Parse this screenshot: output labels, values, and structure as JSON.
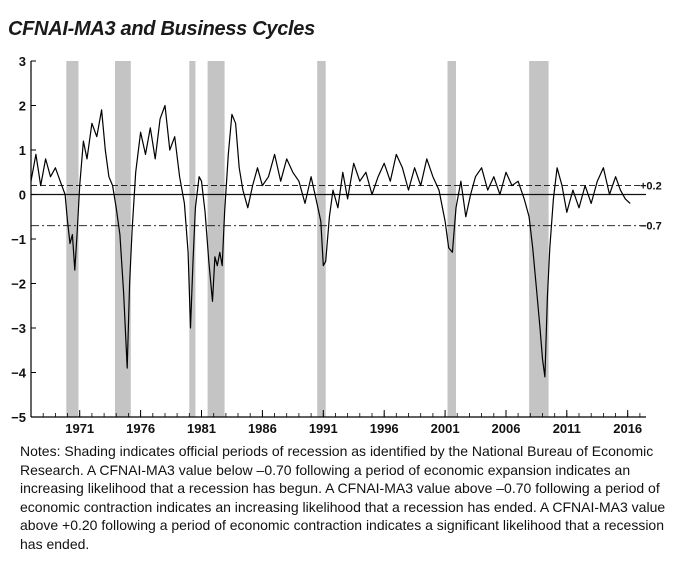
{
  "chart_data": {
    "type": "line",
    "title": "CFNAI-MA3 and Business Cycles",
    "xlabel": "",
    "ylabel": "",
    "xlim": [
      1967.0,
      2017.5
    ],
    "ylim": [
      -5,
      3
    ],
    "yticks": [
      3,
      2,
      1,
      0,
      -1,
      -2,
      -3,
      -4,
      -5
    ],
    "ytick_labels": [
      "3",
      "2",
      "1",
      "0",
      "−1",
      "−2",
      "−3",
      "−4",
      "−5"
    ],
    "xticks": [
      1971,
      1976,
      1981,
      1986,
      1991,
      1996,
      2001,
      2006,
      2011,
      2016
    ],
    "xtick_labels": [
      "1971",
      "1976",
      "1981",
      "1986",
      "1991",
      "1996",
      "2001",
      "2006",
      "2011",
      "2016"
    ],
    "reference_lines": [
      {
        "value": 0.2,
        "label": "+0.2",
        "style": "dashed"
      },
      {
        "value": -0.7,
        "label": "−0.7",
        "style": "dashdot"
      },
      {
        "value": 0,
        "label": "",
        "style": "solid"
      }
    ],
    "recessions": [
      [
        1969.9,
        1970.9
      ],
      [
        1973.9,
        1975.2
      ],
      [
        1980.0,
        1980.5
      ],
      [
        1981.5,
        1982.9
      ],
      [
        1990.5,
        1991.2
      ],
      [
        2001.2,
        2001.9
      ],
      [
        2007.9,
        2009.5
      ]
    ],
    "series": [
      {
        "name": "CFNAI-MA3",
        "x": [
          1967.0,
          1967.4,
          1967.8,
          1968.2,
          1968.6,
          1969.0,
          1969.4,
          1969.8,
          1970.0,
          1970.2,
          1970.4,
          1970.6,
          1970.8,
          1971.0,
          1971.3,
          1971.6,
          1972.0,
          1972.4,
          1972.8,
          1973.1,
          1973.4,
          1973.7,
          1974.0,
          1974.3,
          1974.6,
          1974.9,
          1975.1,
          1975.3,
          1975.6,
          1976.0,
          1976.4,
          1976.8,
          1977.2,
          1977.6,
          1978.0,
          1978.4,
          1978.8,
          1979.2,
          1979.6,
          1979.9,
          1980.1,
          1980.3,
          1980.5,
          1980.8,
          1981.0,
          1981.3,
          1981.6,
          1981.9,
          1982.1,
          1982.3,
          1982.5,
          1982.7,
          1982.9,
          1983.2,
          1983.5,
          1983.8,
          1984.1,
          1984.4,
          1984.8,
          1985.2,
          1985.6,
          1986.0,
          1986.5,
          1987.0,
          1987.5,
          1988.0,
          1988.5,
          1989.0,
          1989.5,
          1990.0,
          1990.4,
          1990.8,
          1991.0,
          1991.2,
          1991.5,
          1991.8,
          1992.2,
          1992.6,
          1993.0,
          1993.5,
          1994.0,
          1994.5,
          1995.0,
          1995.5,
          1996.0,
          1996.5,
          1997.0,
          1997.5,
          1998.0,
          1998.5,
          1999.0,
          1999.5,
          2000.0,
          2000.5,
          2001.0,
          2001.3,
          2001.6,
          2001.9,
          2002.3,
          2002.7,
          2003.1,
          2003.5,
          2004.0,
          2004.5,
          2005.0,
          2005.5,
          2006.0,
          2006.5,
          2007.0,
          2007.5,
          2007.9,
          2008.2,
          2008.5,
          2008.8,
          2009.0,
          2009.2,
          2009.4,
          2009.6,
          2009.9,
          2010.2,
          2010.6,
          2011.0,
          2011.5,
          2012.0,
          2012.5,
          2013.0,
          2013.5,
          2014.0,
          2014.5,
          2015.0,
          2015.4,
          2015.8,
          2016.2
        ],
        "y": [
          0.3,
          0.9,
          0.2,
          0.8,
          0.4,
          0.6,
          0.3,
          0.0,
          -0.6,
          -1.1,
          -0.9,
          -1.7,
          -0.8,
          0.2,
          1.2,
          0.8,
          1.6,
          1.3,
          1.9,
          1.0,
          0.4,
          0.2,
          -0.3,
          -0.9,
          -2.2,
          -3.9,
          -2.0,
          -0.8,
          0.5,
          1.4,
          0.9,
          1.5,
          0.8,
          1.7,
          2.0,
          1.0,
          1.3,
          0.4,
          -0.2,
          -1.3,
          -3.0,
          -1.5,
          -0.3,
          0.4,
          0.3,
          -0.4,
          -1.5,
          -2.4,
          -1.4,
          -1.6,
          -1.3,
          -1.6,
          -0.4,
          0.9,
          1.8,
          1.6,
          0.6,
          0.1,
          -0.3,
          0.2,
          0.6,
          0.2,
          0.4,
          0.9,
          0.3,
          0.8,
          0.5,
          0.3,
          -0.2,
          0.4,
          -0.1,
          -0.6,
          -1.6,
          -1.5,
          -0.5,
          0.1,
          -0.3,
          0.5,
          -0.1,
          0.7,
          0.3,
          0.5,
          0.0,
          0.4,
          0.7,
          0.3,
          0.9,
          0.6,
          0.1,
          0.6,
          0.2,
          0.8,
          0.4,
          0.1,
          -0.6,
          -1.2,
          -1.3,
          -0.3,
          0.3,
          -0.5,
          0.0,
          0.4,
          0.6,
          0.1,
          0.4,
          0.0,
          0.5,
          0.2,
          0.3,
          -0.1,
          -0.5,
          -1.2,
          -2.1,
          -3.0,
          -3.7,
          -4.1,
          -2.3,
          -1.2,
          -0.1,
          0.6,
          0.2,
          -0.4,
          0.1,
          -0.3,
          0.2,
          -0.2,
          0.3,
          0.6,
          0.0,
          0.4,
          0.1,
          -0.1,
          -0.2
        ]
      }
    ]
  },
  "notes": "Notes: Shading indicates official periods of recession as identified by the National Bureau of Economic Research. A CFNAI-MA3 value below –0.70 following a period of economic expansion indicates an increasing likelihood that a recession has begun. A CFNAI-MA3 value above –0.70 following a period of economic contraction indicates an increasing likelihood that a recession has ended. A CFNAI-MA3 value above +0.20 following a period of economic contraction indicates a significant likelihood that a recession has ended."
}
